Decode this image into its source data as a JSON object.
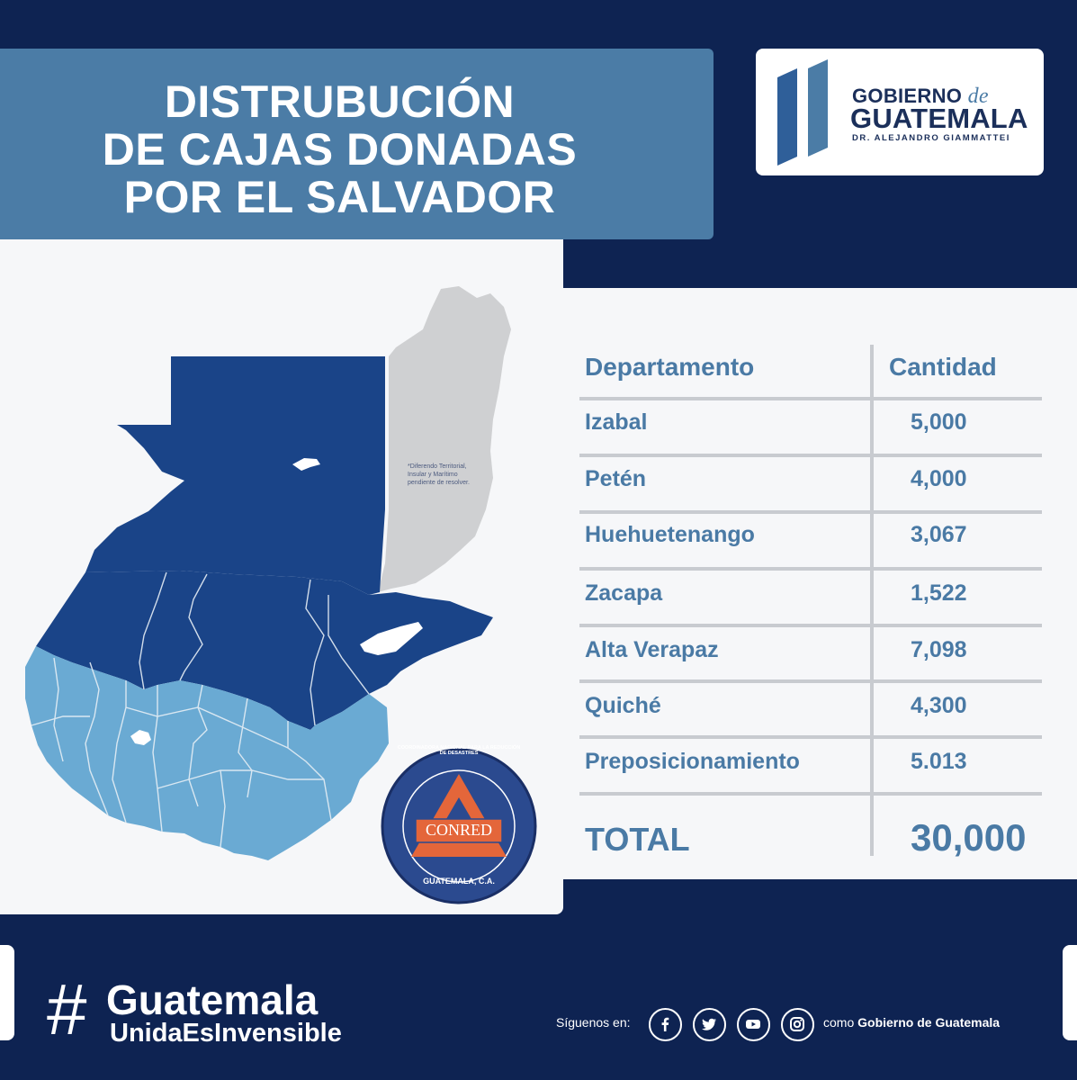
{
  "header": {
    "title_lines": [
      "DISTRUBUCIÓN",
      "DE CAJAS DONADAS",
      "POR EL SALVADOR"
    ]
  },
  "logo": {
    "line1": "GOBIERNO",
    "line1_suffix": "de",
    "line2": "GUATEMALA",
    "line3": "DR. ALEJANDRO GIAMMATTEI"
  },
  "map": {
    "note": "*Diferendo Territorial, Insular y Marítimo pendiente de resolver.",
    "seal_text": "COORDINADORA NACIONAL PARA LA REDUCCIÓN DE DESASTRES",
    "seal_name": "CONRED",
    "seal_country": "GUATEMALA, C.A."
  },
  "table": {
    "headers": [
      "Departamento",
      "Cantidad"
    ],
    "rows": [
      {
        "departamento": "Izabal",
        "cantidad": "5,000"
      },
      {
        "departamento": "Petén",
        "cantidad": "4,000"
      },
      {
        "departamento": "Huehuetenango",
        "cantidad": "3,067"
      },
      {
        "departamento": "Zacapa",
        "cantidad": "1,522"
      },
      {
        "departamento": "Alta Verapaz",
        "cantidad": "7,098"
      },
      {
        "departamento": "Quiché",
        "cantidad": "4,300"
      },
      {
        "departamento": "Preposicionamiento",
        "cantidad": "5.013"
      }
    ],
    "total_label": "TOTAL",
    "total_value": "30,000"
  },
  "footer": {
    "hash_symbol": "#",
    "hashtag_line1": "Guatemala",
    "hashtag_line2": "UnidaEsInvensible",
    "follow_label": "Síguenos en:",
    "social_icons": [
      "facebook-icon",
      "twitter-icon",
      "youtube-icon",
      "instagram-icon"
    ],
    "como_prefix": "como",
    "como_name": "Gobierno de Guatemala"
  },
  "colors": {
    "background": "#0e2352",
    "title_box": "#4b7ca6",
    "dark_blue_region": "#1a4488",
    "light_blue_region": "#6aaad3",
    "belize_gray": "#cfd0d2",
    "table_text": "#4a7aa5"
  }
}
